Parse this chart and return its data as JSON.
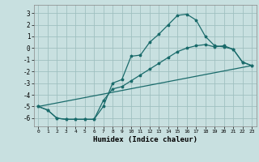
{
  "xlabel": "Humidex (Indice chaleur)",
  "background_color": "#c8e0e0",
  "grid_color": "#a0c0c0",
  "line_color": "#1a6b6b",
  "xlim": [
    -0.5,
    23.5
  ],
  "ylim": [
    -6.7,
    3.7
  ],
  "yticks": [
    -6,
    -5,
    -4,
    -3,
    -2,
    -1,
    0,
    1,
    2,
    3
  ],
  "xticks": [
    0,
    1,
    2,
    3,
    4,
    5,
    6,
    7,
    8,
    9,
    10,
    11,
    12,
    13,
    14,
    15,
    16,
    17,
    18,
    19,
    20,
    21,
    22,
    23
  ],
  "line1_x": [
    0,
    1,
    2,
    3,
    4,
    5,
    6,
    7,
    8,
    9,
    10,
    11,
    12,
    13,
    14,
    15,
    16,
    17,
    18,
    19,
    20,
    21,
    22,
    23
  ],
  "line1_y": [
    -5.0,
    -5.3,
    -6.0,
    -6.1,
    -6.1,
    -6.1,
    -6.1,
    -5.0,
    -3.0,
    -2.7,
    -0.7,
    -0.6,
    0.5,
    1.2,
    2.0,
    2.8,
    2.9,
    2.4,
    1.0,
    0.2,
    0.1,
    -0.1,
    -1.2,
    -1.5
  ],
  "line2_x": [
    0,
    1,
    2,
    3,
    4,
    5,
    6,
    7,
    8,
    9,
    10,
    11,
    12,
    13,
    14,
    15,
    16,
    17,
    18,
    19,
    20,
    21,
    22,
    23
  ],
  "line2_y": [
    -5.0,
    -5.3,
    -6.0,
    -6.1,
    -6.1,
    -6.1,
    -6.1,
    -4.5,
    -3.5,
    -3.3,
    -2.8,
    -2.3,
    -1.8,
    -1.3,
    -0.8,
    -0.3,
    0.0,
    0.2,
    0.3,
    0.1,
    0.2,
    -0.1,
    -1.2,
    -1.5
  ],
  "line3_x": [
    0,
    23
  ],
  "line3_y": [
    -5.0,
    -1.5
  ]
}
